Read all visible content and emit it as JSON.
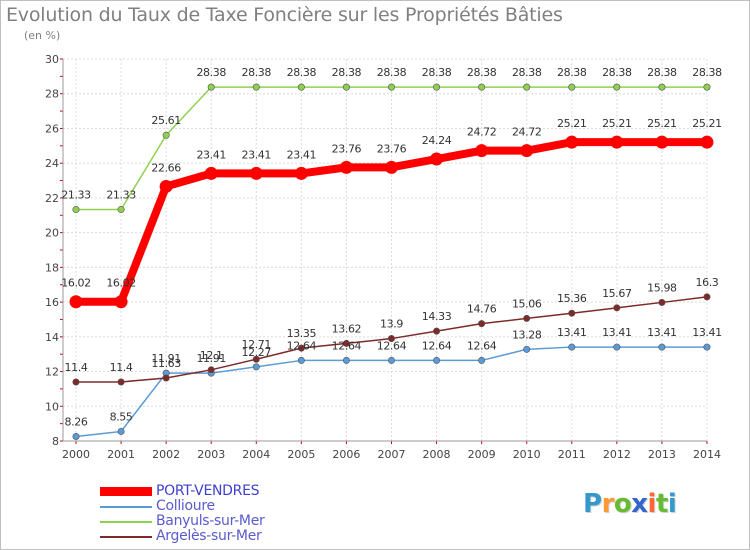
{
  "chart_data": {
    "type": "line",
    "title": "Evolution du Taux de Taxe Foncière sur les Propriétés Bâties",
    "subtitle": "(en %)",
    "x": [
      "2000",
      "2001",
      "2002",
      "2003",
      "2004",
      "2005",
      "2006",
      "2007",
      "2008",
      "2009",
      "2010",
      "2011",
      "2012",
      "2013",
      "2014"
    ],
    "ylim": [
      8,
      30
    ],
    "yticks": [
      8,
      10,
      12,
      14,
      16,
      18,
      20,
      22,
      24,
      26,
      28,
      30
    ],
    "grid": true,
    "legend_position": "bottom-left",
    "series": [
      {
        "name": "PORT-VENDRES",
        "color": "#ff0000",
        "values": [
          16.02,
          16.02,
          22.66,
          23.41,
          23.41,
          23.41,
          23.76,
          23.76,
          24.24,
          24.72,
          24.72,
          25.21,
          25.21,
          25.21,
          25.21
        ],
        "labels": [
          "16.02",
          "16.02",
          "22.66",
          "23.41",
          "23.41",
          "23.41",
          "23.76",
          "23.76",
          "24.24",
          "24.72",
          "24.72",
          "25.21",
          "25.21",
          "25.21",
          "25.21"
        ]
      },
      {
        "name": "Collioure",
        "color": "#5b9bd5",
        "values": [
          8.26,
          8.55,
          11.91,
          11.91,
          12.27,
          12.64,
          12.64,
          12.64,
          12.64,
          12.64,
          13.28,
          13.41,
          13.41,
          13.41,
          13.41
        ],
        "labels": [
          "8.26",
          "8.55",
          "11.91",
          "11.91",
          "12.27",
          "12.64",
          "12.64",
          "12.64",
          "12.64",
          "12.64",
          "13.28",
          "13.41",
          "13.41",
          "13.41",
          "13.41"
        ]
      },
      {
        "name": "Banyuls-sur-Mer",
        "color": "#8fd14f",
        "values": [
          21.33,
          21.33,
          25.61,
          28.38,
          28.38,
          28.38,
          28.38,
          28.38,
          28.38,
          28.38,
          28.38,
          28.38,
          28.38,
          28.38,
          28.38
        ],
        "labels": [
          "21.33",
          "21.33",
          "25.61",
          "28.38",
          "28.38",
          "28.38",
          "28.38",
          "28.38",
          "28.38",
          "28.38",
          "28.38",
          "28.38",
          "28.38",
          "28.38",
          "28.38"
        ]
      },
      {
        "name": "Argelès-sur-Mer",
        "color": "#7f2a2a",
        "values": [
          11.4,
          11.4,
          11.63,
          12.1,
          12.71,
          13.35,
          13.62,
          13.9,
          14.33,
          14.76,
          15.06,
          15.36,
          15.67,
          15.98,
          16.3
        ],
        "labels": [
          "11.4",
          "11.4",
          "11.63",
          "12.1",
          "12.71",
          "13.35",
          "13.62",
          "13.9",
          "14.33",
          "14.76",
          "15.06",
          "15.36",
          "15.67",
          "15.98",
          "16.3"
        ]
      }
    ]
  },
  "logo": {
    "letters": [
      "P",
      "r",
      "o",
      "x",
      "i",
      "t",
      "i"
    ],
    "colors": [
      "#3399cc",
      "#ff9933",
      "#66bb33",
      "#3366cc",
      "#ff6633",
      "#66bb33",
      "#3399cc"
    ]
  }
}
